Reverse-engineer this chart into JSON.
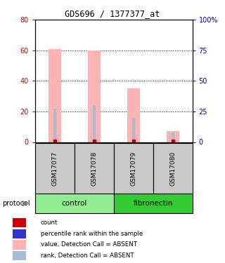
{
  "title": "GDS696 / 1377377_at",
  "samples": [
    "GSM17077",
    "GSM17078",
    "GSM17079",
    "GSM17080"
  ],
  "pink_bar_values": [
    61,
    60,
    35,
    7
  ],
  "blue_rank_values": [
    27,
    30,
    20,
    8
  ],
  "pink_bar_color": "#FFB3B3",
  "blue_bar_color": "#AABBD4",
  "red_sq_color": "#CC0000",
  "blue_sq_color": "#3333CC",
  "ylim_left": [
    0,
    80
  ],
  "ylim_right": [
    0,
    100
  ],
  "yticks_left": [
    0,
    20,
    40,
    60,
    80
  ],
  "yticks_right": [
    0,
    25,
    50,
    75,
    100
  ],
  "ytick_labels_right": [
    "0",
    "25",
    "50",
    "75",
    "100%"
  ],
  "left_axis_color": "#CC0000",
  "right_axis_color": "#0000CC",
  "groups": [
    {
      "label": "control",
      "samples": [
        0,
        1
      ],
      "color": "#90EE90"
    },
    {
      "label": "fibronectin",
      "samples": [
        2,
        3
      ],
      "color": "#33CC33"
    }
  ],
  "protocol_label": "protocol",
  "legend_items": [
    {
      "color": "#CC0000",
      "label": "count"
    },
    {
      "color": "#3333CC",
      "label": "percentile rank within the sample"
    },
    {
      "color": "#FFB3B3",
      "label": "value, Detection Call = ABSENT"
    },
    {
      "color": "#AABBD4",
      "label": "rank, Detection Call = ABSENT"
    }
  ],
  "bar_width": 0.35,
  "sample_bg": "#C8C8C8",
  "plot_bg": "#FFFFFF"
}
